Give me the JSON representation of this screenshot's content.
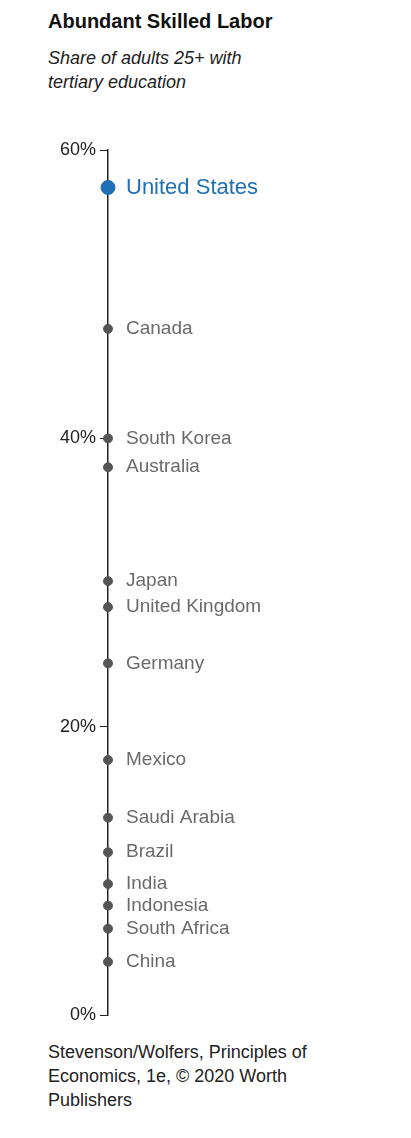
{
  "chart_data": {
    "type": "dot",
    "title": "Abundant Skilled Labor",
    "subtitle": "Share of adults 25+ with tertiary education",
    "source": "Stevenson/Wolfers, Principles of Economics, 1e, © 2020 Worth Publishers",
    "categories": [
      "United States",
      "Canada",
      "South Korea",
      "Australia",
      "Japan",
      "United Kingdom",
      "Germany",
      "Mexico",
      "Saudi Arabia",
      "Brazil",
      "India",
      "Indonesia",
      "South Africa",
      "China"
    ],
    "values": [
      57.4,
      47.6,
      40,
      38,
      30.1,
      28.3,
      24.4,
      17.7,
      13.7,
      11.3,
      9.1,
      7.6,
      6,
      3.7
    ],
    "colors": [
      "#1f6fb2",
      "#555555",
      "#555555",
      "#555555",
      "#555555",
      "#555555",
      "#555555",
      "#555555",
      "#555555",
      "#555555",
      "#555555",
      "#555555",
      "#555555",
      "#555555"
    ],
    "ylim": [
      0,
      60
    ],
    "yticks": [
      {
        "value": 0,
        "label": "0%"
      },
      {
        "value": 20,
        "label": "20%"
      },
      {
        "value": 40,
        "label": "40%"
      },
      {
        "value": 60,
        "label": "60%"
      }
    ],
    "grid": false
  }
}
